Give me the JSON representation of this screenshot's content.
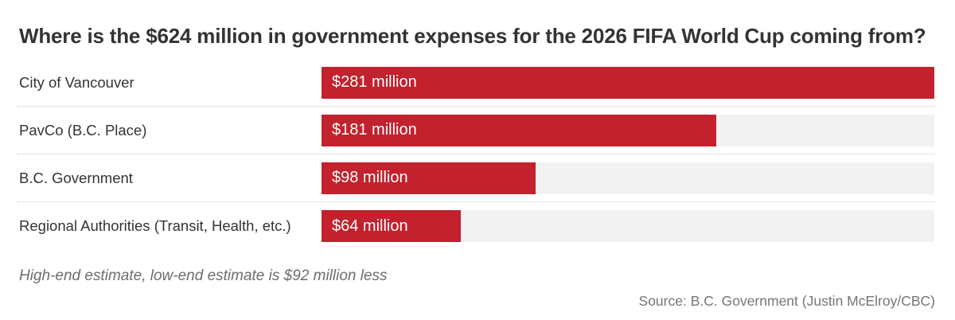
{
  "title": "Where is the $624 million in government expenses for the 2026 FIFA World Cup coming from?",
  "footnote": "High-end estimate, low-end estimate is $92 million less",
  "source": "Source: B.C. Government (Justin McElroy/CBC)",
  "colors": {
    "bar": "#c2212d",
    "track": "#f2f2f2",
    "title": "#333333",
    "muted": "#6d6d6d",
    "separator": "#c9c9c9"
  },
  "chart_data": {
    "type": "bar",
    "orientation": "horizontal",
    "title": "Where is the $624 million in government expenses for the 2026 FIFA World Cup coming from?",
    "categories": [
      "City of Vancouver",
      "PavCo (B.C. Place)",
      "B.C. Government",
      "Regional Authorities (Transit, Health, etc.)"
    ],
    "values": [
      281,
      181,
      98,
      64
    ],
    "value_labels": [
      "$281 million",
      "$181 million",
      "$98 million",
      "$64 million"
    ],
    "total": 624,
    "xlabel": "",
    "ylabel": "",
    "xlim": [
      0,
      281
    ],
    "grid": false,
    "legend": false,
    "annotations": [
      "High-end estimate, low-end estimate is $92 million less"
    ]
  }
}
